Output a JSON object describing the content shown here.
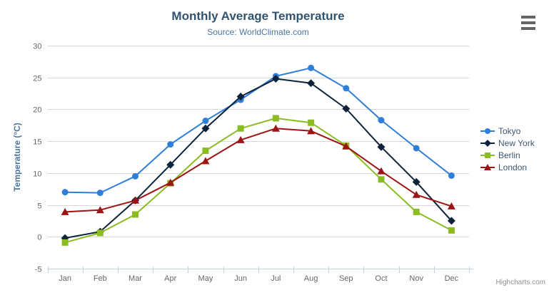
{
  "chart_data": {
    "type": "line",
    "title": "Monthly Average Temperature",
    "subtitle": "Source: WorldClimate.com",
    "xlabel": "",
    "ylabel": "Temperature (°C)",
    "categories": [
      "Jan",
      "Feb",
      "Mar",
      "Apr",
      "May",
      "Jun",
      "Jul",
      "Aug",
      "Sep",
      "Oct",
      "Nov",
      "Dec"
    ],
    "ylim": [
      -5,
      30
    ],
    "ytick_step": 5,
    "grid": true,
    "legend_position": "right",
    "series": [
      {
        "name": "Tokyo",
        "color": "#2f7ed8",
        "marker": "circle",
        "values": [
          7.0,
          6.9,
          9.5,
          14.5,
          18.2,
          21.5,
          25.2,
          26.5,
          23.3,
          18.3,
          13.9,
          9.6
        ]
      },
      {
        "name": "New York",
        "color": "#0d233a",
        "marker": "diamond",
        "values": [
          -0.2,
          0.8,
          5.7,
          11.3,
          17.0,
          22.0,
          24.8,
          24.1,
          20.1,
          14.1,
          8.6,
          2.5
        ]
      },
      {
        "name": "Berlin",
        "color": "#8bbc21",
        "marker": "square",
        "values": [
          -0.9,
          0.6,
          3.5,
          8.4,
          13.5,
          17.0,
          18.6,
          17.9,
          14.3,
          9.0,
          3.9,
          1.0
        ]
      },
      {
        "name": "London",
        "color": "#9c1414",
        "marker": "triangle",
        "values": [
          3.9,
          4.2,
          5.7,
          8.5,
          11.9,
          15.2,
          17.0,
          16.6,
          14.2,
          10.3,
          6.6,
          4.8
        ]
      }
    ],
    "credits": "Highcharts.com"
  },
  "colors": {
    "title": "#32536f",
    "subtitle": "#4d759e",
    "axis_title": "#4d759e",
    "axis_label": "#666666",
    "grid": "#d8d8d8",
    "axis_line": "#c0d0e0",
    "legend_text": "#3e576f",
    "credits": "#909090",
    "menu_icon": "#666666",
    "background": "#ffffff"
  },
  "icons": {
    "menu": "hamburger-icon"
  }
}
